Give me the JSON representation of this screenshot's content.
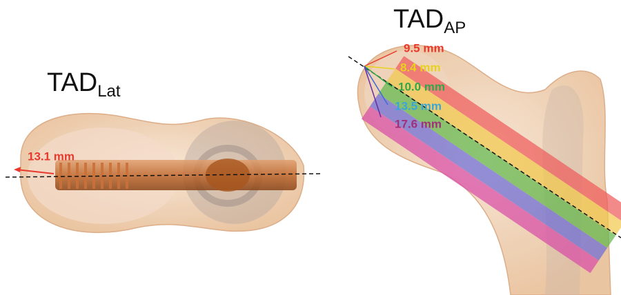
{
  "left_panel": {
    "title": "TAD",
    "title_sub": "Lat",
    "measurement": "13.1 mm"
  },
  "right_panel": {
    "title": "TAD",
    "title_sub": "AP",
    "measurements": [
      "9.5 mm",
      "8.4 mm",
      "10.0 mm",
      "13.5 mm",
      "17.6 mm"
    ]
  }
}
